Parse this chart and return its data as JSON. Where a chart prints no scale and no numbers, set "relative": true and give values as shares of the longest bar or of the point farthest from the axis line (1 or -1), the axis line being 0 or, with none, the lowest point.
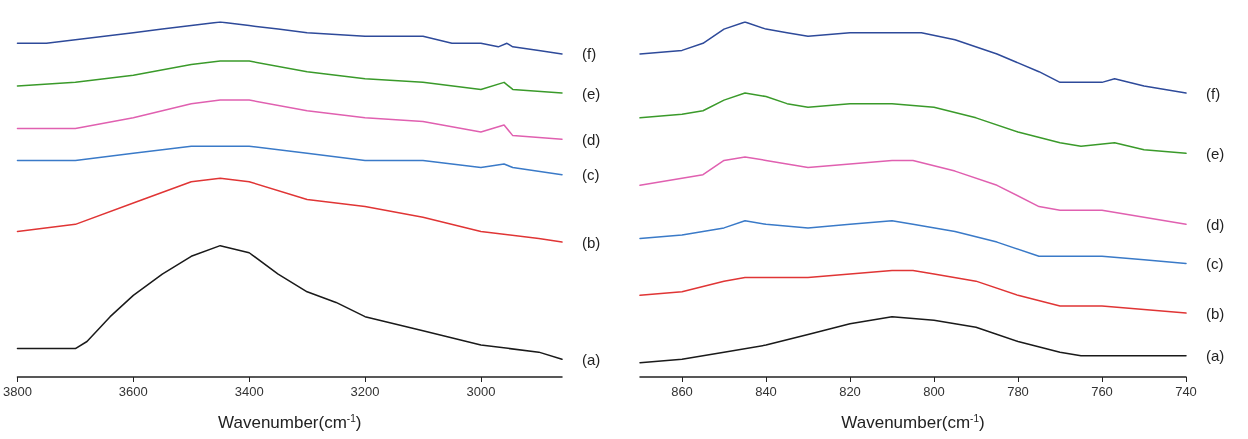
{
  "chart_data": [
    {
      "type": "line",
      "xlabel": "Wavenumber(cm$^{-1}$)",
      "relative": true,
      "xlim": [
        3800,
        2860
      ],
      "xticks": [
        3800,
        3600,
        3400,
        3200,
        3000
      ],
      "grid": false,
      "legend": false,
      "marker": "none",
      "line_style": "solid",
      "series": [
        {
          "name": "(a)",
          "color": "#1a1a1a",
          "x": [
            3800,
            3700,
            3680,
            3640,
            3600,
            3550,
            3500,
            3450,
            3400,
            3350,
            3300,
            3250,
            3200,
            3100,
            3000,
            2900,
            2860
          ],
          "values": [
            0.08,
            0.08,
            0.1,
            0.17,
            0.23,
            0.29,
            0.34,
            0.37,
            0.35,
            0.29,
            0.24,
            0.21,
            0.17,
            0.13,
            0.09,
            0.07,
            0.05
          ]
        },
        {
          "name": "(b)",
          "color": "#e03535",
          "x": [
            3800,
            3700,
            3600,
            3500,
            3450,
            3400,
            3300,
            3200,
            3100,
            3000,
            2900,
            2860
          ],
          "values": [
            0.41,
            0.43,
            0.49,
            0.55,
            0.56,
            0.55,
            0.5,
            0.48,
            0.45,
            0.41,
            0.39,
            0.38
          ]
        },
        {
          "name": "(c)",
          "color": "#3a7ac8",
          "x": [
            3800,
            3700,
            3600,
            3500,
            3450,
            3400,
            3300,
            3200,
            3100,
            3000,
            2960,
            2945,
            2860
          ],
          "values": [
            0.61,
            0.61,
            0.63,
            0.65,
            0.65,
            0.65,
            0.63,
            0.61,
            0.61,
            0.59,
            0.6,
            0.59,
            0.57
          ]
        },
        {
          "name": "(d)",
          "color": "#e060b0",
          "x": [
            3800,
            3700,
            3600,
            3500,
            3450,
            3400,
            3300,
            3200,
            3100,
            3000,
            2960,
            2945,
            2860
          ],
          "values": [
            0.7,
            0.7,
            0.73,
            0.77,
            0.78,
            0.78,
            0.75,
            0.73,
            0.72,
            0.69,
            0.71,
            0.68,
            0.67
          ]
        },
        {
          "name": "(e)",
          "color": "#3a9a2a",
          "x": [
            3800,
            3700,
            3600,
            3500,
            3450,
            3400,
            3300,
            3200,
            3100,
            3000,
            2960,
            2945,
            2860
          ],
          "values": [
            0.82,
            0.83,
            0.85,
            0.88,
            0.89,
            0.89,
            0.86,
            0.84,
            0.83,
            0.81,
            0.83,
            0.81,
            0.8
          ]
        },
        {
          "name": "(f)",
          "color": "#2e4a9a",
          "x": [
            3800,
            3750,
            3700,
            3650,
            3600,
            3550,
            3500,
            3450,
            3400,
            3350,
            3300,
            3200,
            3100,
            3050,
            3000,
            2970,
            2955,
            2945,
            2900,
            2860
          ],
          "values": [
            0.94,
            0.94,
            0.95,
            0.96,
            0.97,
            0.98,
            0.99,
            1.0,
            0.99,
            0.98,
            0.97,
            0.96,
            0.96,
            0.94,
            0.94,
            0.93,
            0.94,
            0.93,
            0.92,
            0.91
          ]
        }
      ]
    },
    {
      "type": "line",
      "xlabel": "Wavenumber(cm$^{-1}$)",
      "relative": true,
      "xlim": [
        870,
        740
      ],
      "xticks": [
        860,
        840,
        820,
        800,
        780,
        760,
        740
      ],
      "grid": false,
      "legend": false,
      "marker": "none",
      "line_style": "solid",
      "series": [
        {
          "name": "(a)",
          "color": "#1a1a1a",
          "x": [
            870,
            860,
            850,
            840,
            830,
            820,
            810,
            800,
            790,
            780,
            770,
            765,
            750,
            740
          ],
          "values": [
            0.04,
            0.05,
            0.07,
            0.09,
            0.12,
            0.15,
            0.17,
            0.16,
            0.14,
            0.1,
            0.07,
            0.06,
            0.06,
            0.06
          ]
        },
        {
          "name": "(b)",
          "color": "#e03535",
          "x": [
            870,
            860,
            850,
            845,
            840,
            830,
            820,
            810,
            805,
            800,
            790,
            780,
            770,
            760,
            750,
            740
          ],
          "values": [
            0.23,
            0.24,
            0.27,
            0.28,
            0.28,
            0.28,
            0.29,
            0.3,
            0.3,
            0.29,
            0.27,
            0.23,
            0.2,
            0.2,
            0.19,
            0.18
          ]
        },
        {
          "name": "(c)",
          "color": "#3a7ac8",
          "x": [
            870,
            860,
            850,
            845,
            840,
            830,
            820,
            810,
            805,
            795,
            785,
            775,
            770,
            760,
            750,
            740
          ],
          "values": [
            0.39,
            0.4,
            0.42,
            0.44,
            0.43,
            0.42,
            0.43,
            0.44,
            0.43,
            0.41,
            0.38,
            0.34,
            0.34,
            0.34,
            0.33,
            0.32
          ]
        },
        {
          "name": "(d)",
          "color": "#e060b0",
          "x": [
            870,
            860,
            855,
            850,
            845,
            840,
            835,
            830,
            820,
            810,
            805,
            795,
            785,
            775,
            770,
            760,
            755,
            740
          ],
          "values": [
            0.54,
            0.56,
            0.57,
            0.61,
            0.62,
            0.61,
            0.6,
            0.59,
            0.6,
            0.61,
            0.61,
            0.58,
            0.54,
            0.48,
            0.47,
            0.47,
            0.46,
            0.43
          ]
        },
        {
          "name": "(e)",
          "color": "#3a9a2a",
          "x": [
            870,
            860,
            855,
            850,
            845,
            840,
            835,
            830,
            820,
            810,
            800,
            790,
            780,
            770,
            765,
            757,
            750,
            740
          ],
          "values": [
            0.73,
            0.74,
            0.75,
            0.78,
            0.8,
            0.79,
            0.77,
            0.76,
            0.77,
            0.77,
            0.76,
            0.73,
            0.69,
            0.66,
            0.65,
            0.66,
            0.64,
            0.63
          ]
        },
        {
          "name": "(f)",
          "color": "#2e4a9a",
          "x": [
            870,
            860,
            855,
            850,
            845,
            840,
            835,
            830,
            820,
            810,
            803,
            795,
            785,
            775,
            770,
            760,
            757,
            750,
            740
          ],
          "values": [
            0.91,
            0.92,
            0.94,
            0.98,
            1.0,
            0.98,
            0.97,
            0.96,
            0.97,
            0.97,
            0.97,
            0.95,
            0.91,
            0.86,
            0.83,
            0.83,
            0.84,
            0.82,
            0.8
          ]
        }
      ]
    }
  ]
}
